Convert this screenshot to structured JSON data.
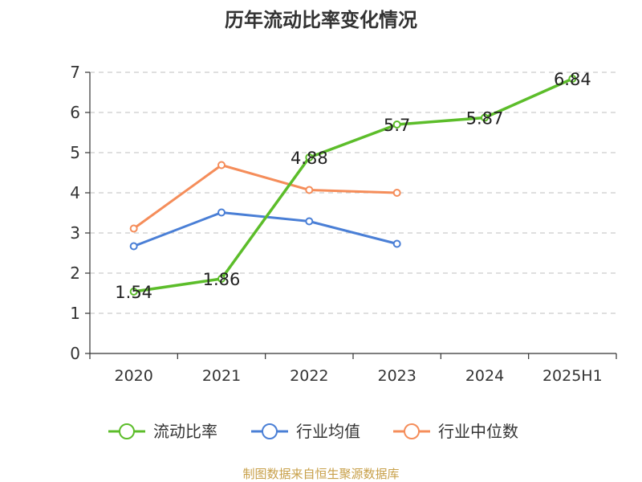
{
  "chart_data": {
    "type": "line",
    "title": "历年流动比率变化情况",
    "categories": [
      "2020",
      "2021",
      "2022",
      "2023",
      "2024",
      "2025H1"
    ],
    "ylim": [
      0,
      7
    ],
    "yticks": [
      "0",
      "1",
      "2",
      "3",
      "4",
      "5",
      "6",
      "7"
    ],
    "grid": true,
    "legend_position": "bottom",
    "series": [
      {
        "name": "流动比率",
        "color": "#5cbd2a",
        "values": [
          1.54,
          1.86,
          4.88,
          5.7,
          5.87,
          6.84
        ],
        "labels": [
          "1.54",
          "1.86",
          "4.88",
          "5.7",
          "5.87",
          "6.84"
        ]
      },
      {
        "name": "行业均值",
        "color": "#4a7fd6",
        "values": [
          2.67,
          3.51,
          3.29,
          2.73,
          null,
          null
        ]
      },
      {
        "name": "行业中位数",
        "color": "#f58d5a",
        "values": [
          3.11,
          4.69,
          4.07,
          4.0,
          null,
          null
        ]
      }
    ]
  },
  "footer": {
    "source": "制图数据来自恒生聚源数据库"
  }
}
